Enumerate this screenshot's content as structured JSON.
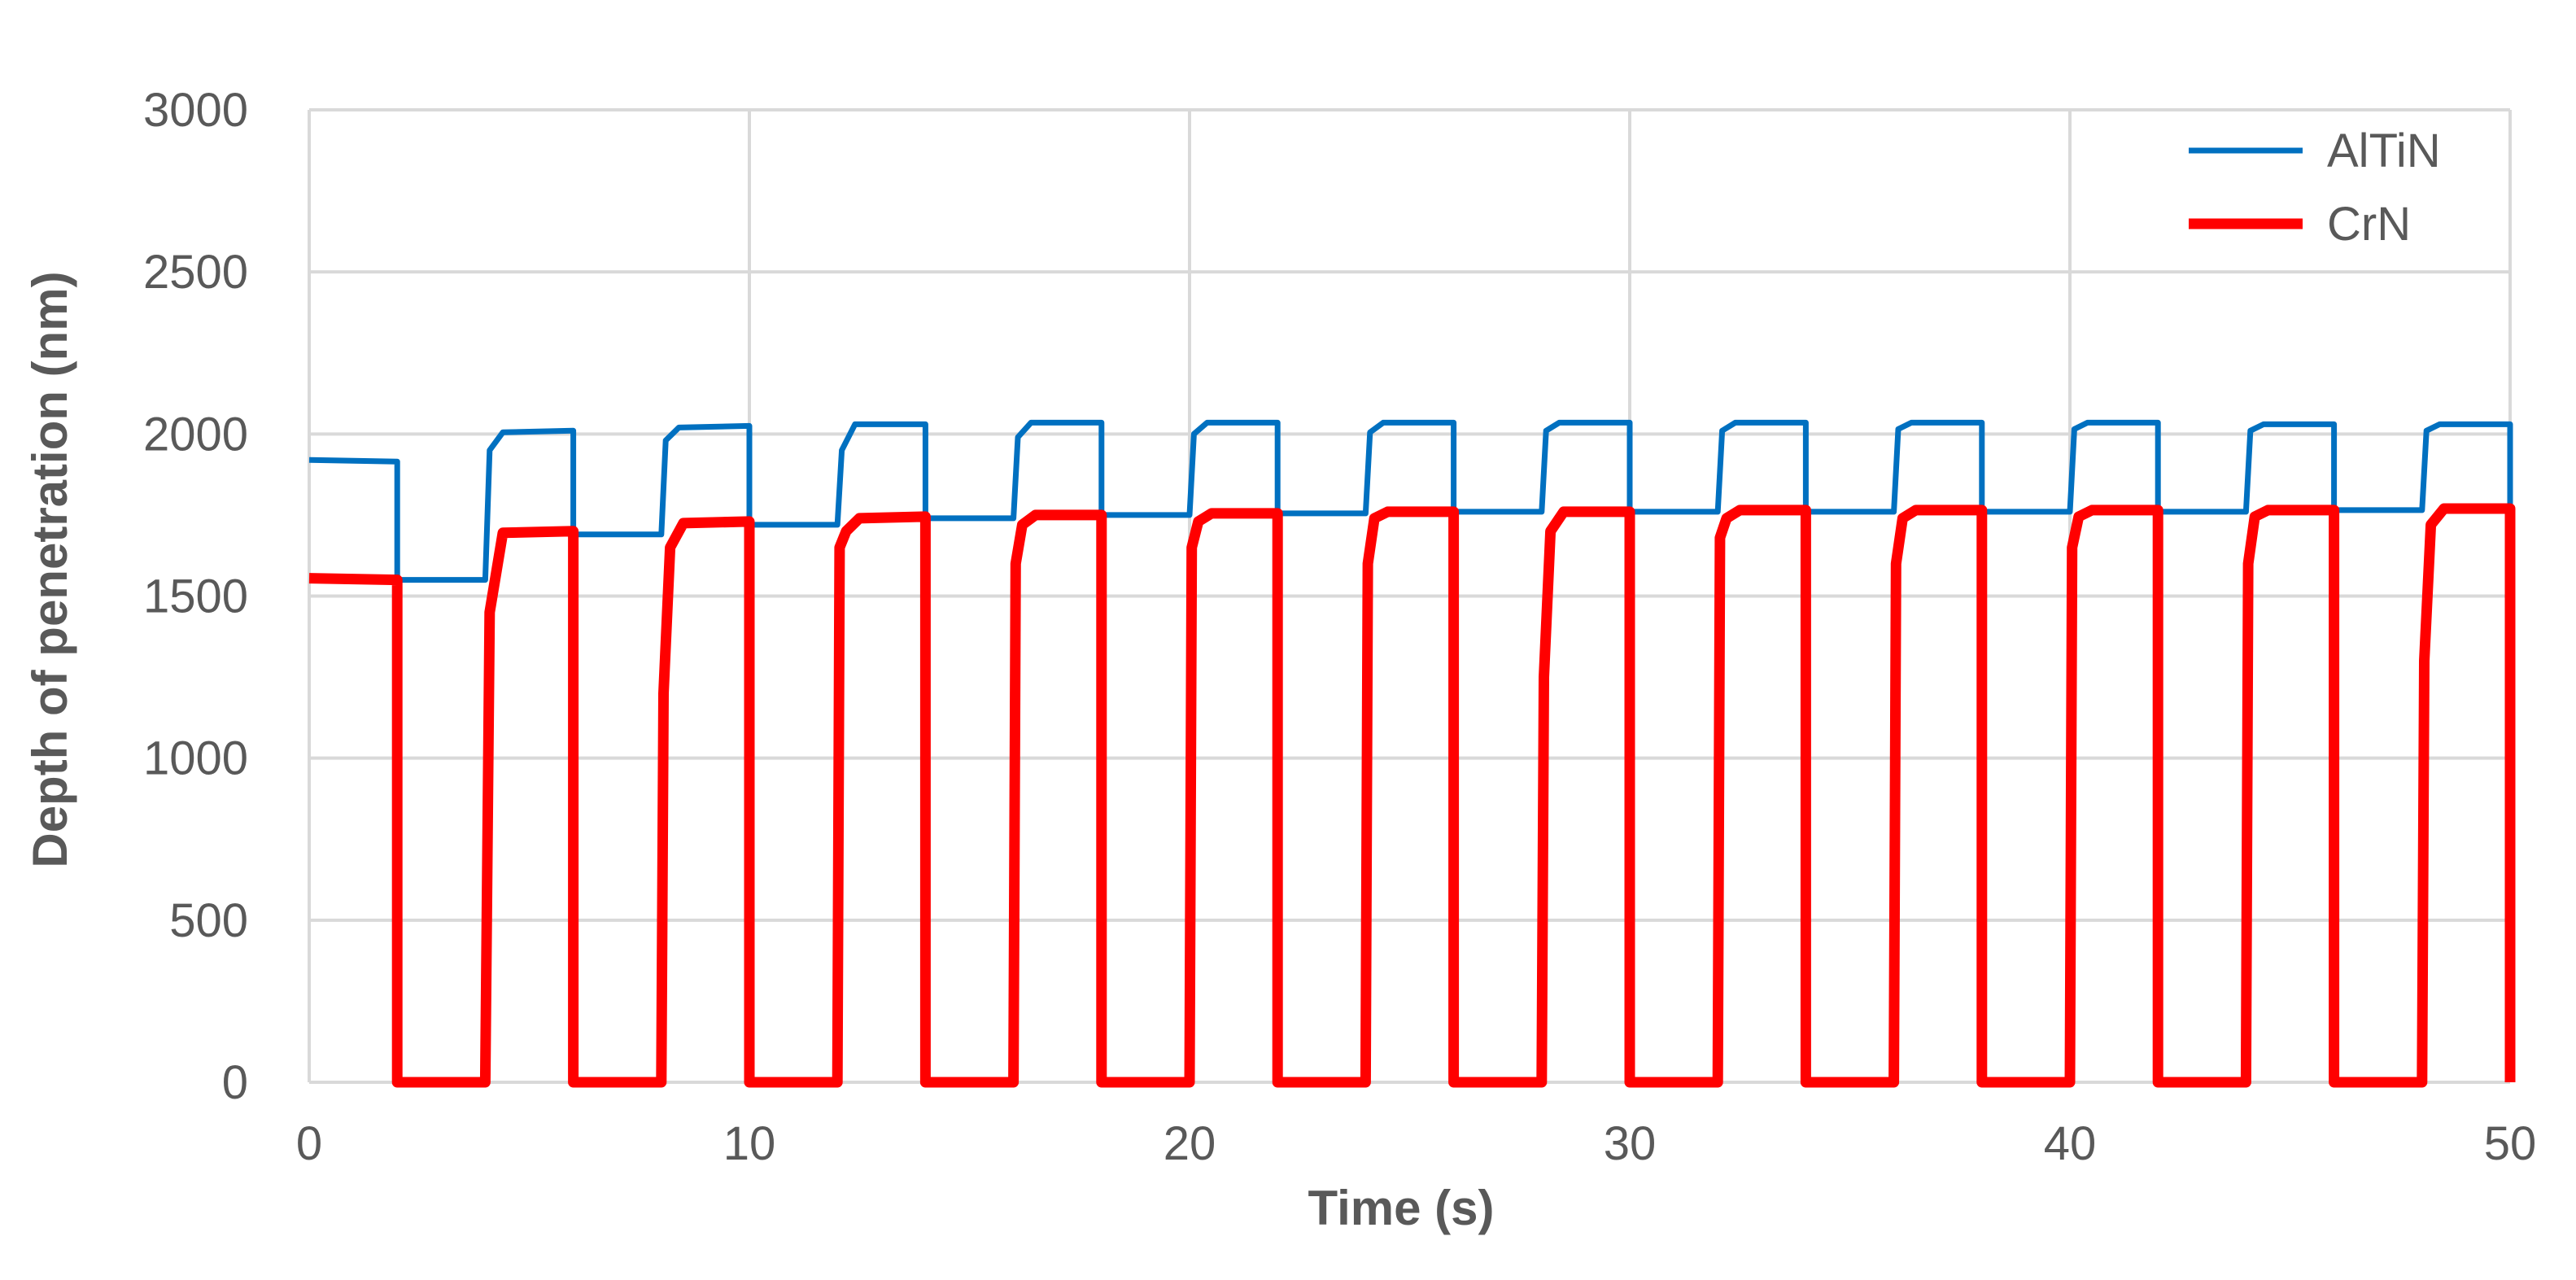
{
  "chart_data": {
    "type": "line",
    "xlabel": "Time (s)",
    "ylabel": "Depth of penetration (nm)",
    "xlim": [
      0,
      50
    ],
    "ylim": [
      0,
      3000
    ],
    "x_ticks": [
      "0",
      "10",
      "20",
      "30",
      "40",
      "50"
    ],
    "y_ticks": [
      "0",
      "500",
      "1000",
      "1500",
      "2000",
      "2500",
      "3000"
    ],
    "grid": true,
    "legend_position": "top-right",
    "series": [
      {
        "name": "AlTiN",
        "color": "#0070C0",
        "x": [
          0,
          2,
          2,
          4,
          4.1,
          4.4,
          6,
          6,
          8,
          8.1,
          8.4,
          10,
          10,
          12,
          12.1,
          12.4,
          14,
          14,
          16,
          16.1,
          16.4,
          18,
          18,
          20,
          20.1,
          20.4,
          22,
          22,
          24,
          24.1,
          24.4,
          26,
          26,
          28,
          28.1,
          28.4,
          30,
          30,
          32,
          32.1,
          32.4,
          34,
          34,
          36,
          36.1,
          36.4,
          38,
          38,
          40,
          40.1,
          40.4,
          42,
          42,
          44,
          44.1,
          44.4,
          46,
          46,
          48,
          48.1,
          48.4,
          50,
          50
        ],
        "y": [
          1920,
          1915,
          1550,
          1550,
          1950,
          2005,
          2010,
          1690,
          1690,
          1980,
          2020,
          2025,
          1720,
          1720,
          1950,
          2030,
          2030,
          1740,
          1740,
          1990,
          2035,
          2035,
          1750,
          1750,
          2000,
          2035,
          2035,
          1755,
          1755,
          2005,
          2035,
          2035,
          1760,
          1760,
          2010,
          2035,
          2035,
          1760,
          1760,
          2010,
          2035,
          2035,
          1760,
          1760,
          2015,
          2035,
          2035,
          1760,
          1760,
          2015,
          2035,
          2035,
          1760,
          1760,
          2010,
          2030,
          2030,
          1765,
          1765,
          2010,
          2030,
          2030,
          1765
        ]
      },
      {
        "name": "CrN",
        "color": "#FF0000",
        "x": [
          0,
          2,
          2,
          4,
          4.1,
          4.4,
          6,
          6,
          8,
          8.05,
          8.2,
          8.5,
          10,
          10,
          12,
          12.05,
          12.2,
          12.5,
          14,
          14,
          16,
          16.05,
          16.2,
          16.5,
          18,
          18,
          20,
          20.05,
          20.2,
          20.5,
          22,
          22,
          24,
          24.05,
          24.2,
          24.5,
          26,
          26,
          28,
          28.05,
          28.2,
          28.5,
          30,
          30,
          32,
          32.05,
          32.2,
          32.5,
          34,
          34,
          36,
          36.05,
          36.2,
          36.5,
          38,
          38,
          40,
          40.05,
          40.2,
          40.5,
          42,
          42,
          44,
          44.05,
          44.2,
          44.5,
          46,
          46,
          48,
          48.05,
          48.2,
          48.5,
          50,
          50
        ],
        "y": [
          1555,
          1550,
          0,
          0,
          1450,
          1695,
          1700,
          0,
          0,
          1200,
          1650,
          1725,
          1730,
          0,
          0,
          1650,
          1700,
          1740,
          1745,
          0,
          0,
          1600,
          1720,
          1750,
          1750,
          0,
          0,
          1650,
          1730,
          1755,
          1755,
          0,
          0,
          1600,
          1740,
          1760,
          1760,
          0,
          0,
          1250,
          1700,
          1760,
          1760,
          0,
          0,
          1680,
          1740,
          1765,
          1765,
          0,
          0,
          1600,
          1740,
          1765,
          1765,
          0,
          0,
          1650,
          1745,
          1765,
          1765,
          0,
          0,
          1600,
          1745,
          1765,
          1765,
          0,
          0,
          1300,
          1720,
          1770,
          1770,
          0
        ]
      }
    ]
  }
}
